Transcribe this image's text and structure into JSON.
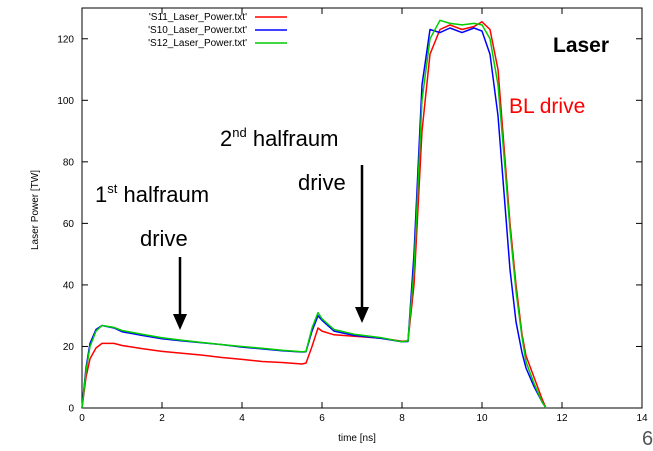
{
  "chart_data": {
    "type": "line",
    "xlabel": "time [ns]",
    "ylabel": "Laser Power [TW]",
    "xlim": [
      0,
      14
    ],
    "ylim": [
      0,
      130
    ],
    "xticks": [
      0,
      2,
      4,
      6,
      8,
      10,
      12,
      14
    ],
    "yticks": [
      0,
      20,
      40,
      60,
      80,
      100,
      120
    ],
    "grid": false,
    "legend_position": "top-left",
    "series": [
      {
        "name": "'S11_Laser_Power.txt'",
        "color": "#ff0000",
        "points": [
          [
            0,
            0
          ],
          [
            0.1,
            10
          ],
          [
            0.2,
            16
          ],
          [
            0.35,
            19.5
          ],
          [
            0.5,
            21
          ],
          [
            0.8,
            21
          ],
          [
            1,
            20.3
          ],
          [
            1.5,
            19.3
          ],
          [
            2,
            18.4
          ],
          [
            2.5,
            17.8
          ],
          [
            3,
            17.2
          ],
          [
            3.5,
            16.4
          ],
          [
            4,
            15.8
          ],
          [
            4.5,
            15.1
          ],
          [
            5,
            14.8
          ],
          [
            5.5,
            14.3
          ],
          [
            5.6,
            14.6
          ],
          [
            5.75,
            20
          ],
          [
            5.9,
            26
          ],
          [
            6,
            25
          ],
          [
            6.3,
            23.8
          ],
          [
            6.8,
            23.3
          ],
          [
            7.5,
            22.7
          ],
          [
            8,
            21.7
          ],
          [
            8.15,
            21.8
          ],
          [
            8.3,
            40
          ],
          [
            8.5,
            90
          ],
          [
            8.7,
            115
          ],
          [
            8.95,
            123
          ],
          [
            9.2,
            124.5
          ],
          [
            9.5,
            123
          ],
          [
            9.8,
            124
          ],
          [
            10,
            125.5
          ],
          [
            10.2,
            123
          ],
          [
            10.4,
            110
          ],
          [
            10.55,
            85
          ],
          [
            10.7,
            60
          ],
          [
            10.85,
            40
          ],
          [
            11,
            24
          ],
          [
            11.1,
            17
          ],
          [
            11.3,
            10
          ],
          [
            11.5,
            3
          ],
          [
            11.6,
            0
          ]
        ]
      },
      {
        "name": "'S10_Laser_Power.txt'",
        "color": "#0000ff",
        "points": [
          [
            0,
            0
          ],
          [
            0.1,
            13
          ],
          [
            0.2,
            21
          ],
          [
            0.35,
            25.5
          ],
          [
            0.5,
            26.8
          ],
          [
            0.8,
            26
          ],
          [
            1,
            24.8
          ],
          [
            1.5,
            23.6
          ],
          [
            2,
            22.5
          ],
          [
            2.5,
            21.8
          ],
          [
            3,
            21.2
          ],
          [
            3.5,
            20.6
          ],
          [
            4,
            19.8
          ],
          [
            4.5,
            19.2
          ],
          [
            5,
            18.6
          ],
          [
            5.5,
            18.2
          ],
          [
            5.6,
            18.3
          ],
          [
            5.75,
            25
          ],
          [
            5.9,
            30
          ],
          [
            6,
            28.5
          ],
          [
            6.3,
            25
          ],
          [
            6.8,
            23.6
          ],
          [
            7.5,
            22.6
          ],
          [
            8,
            21.5
          ],
          [
            8.15,
            21.6
          ],
          [
            8.3,
            50
          ],
          [
            8.5,
            105
          ],
          [
            8.7,
            123
          ],
          [
            8.95,
            122
          ],
          [
            9.2,
            123.5
          ],
          [
            9.5,
            122
          ],
          [
            9.8,
            123.5
          ],
          [
            10,
            122.5
          ],
          [
            10.2,
            115
          ],
          [
            10.4,
            95
          ],
          [
            10.55,
            70
          ],
          [
            10.7,
            45
          ],
          [
            10.85,
            28
          ],
          [
            11,
            18
          ],
          [
            11.1,
            13
          ],
          [
            11.3,
            7
          ],
          [
            11.5,
            2
          ],
          [
            11.6,
            0
          ]
        ]
      },
      {
        "name": "'S12_Laser_Power.txt'",
        "color": "#00cc00",
        "points": [
          [
            0,
            0
          ],
          [
            0.1,
            12
          ],
          [
            0.2,
            20
          ],
          [
            0.35,
            25
          ],
          [
            0.5,
            26.8
          ],
          [
            0.8,
            26.2
          ],
          [
            1,
            25.2
          ],
          [
            1.5,
            24
          ],
          [
            2,
            22.8
          ],
          [
            2.5,
            22
          ],
          [
            3,
            21.3
          ],
          [
            3.5,
            20.6
          ],
          [
            4,
            20
          ],
          [
            4.5,
            19.4
          ],
          [
            5,
            18.8
          ],
          [
            5.5,
            18.3
          ],
          [
            5.6,
            18.4
          ],
          [
            5.75,
            26
          ],
          [
            5.9,
            31
          ],
          [
            6,
            29
          ],
          [
            6.3,
            25.5
          ],
          [
            6.8,
            24
          ],
          [
            7.5,
            22.8
          ],
          [
            8,
            21.5
          ],
          [
            8.15,
            21.8
          ],
          [
            8.3,
            45
          ],
          [
            8.5,
            100
          ],
          [
            8.7,
            120
          ],
          [
            8.95,
            126
          ],
          [
            9.2,
            125
          ],
          [
            9.5,
            124.5
          ],
          [
            9.8,
            125
          ],
          [
            10,
            124.5
          ],
          [
            10.2,
            120
          ],
          [
            10.4,
            105
          ],
          [
            10.55,
            82
          ],
          [
            10.7,
            58
          ],
          [
            10.85,
            38
          ],
          [
            11,
            23
          ],
          [
            11.1,
            15
          ],
          [
            11.3,
            8
          ],
          [
            11.5,
            2
          ],
          [
            11.6,
            0
          ]
        ]
      }
    ],
    "annotations": {
      "laser": "Laser",
      "bl_drive": "BL drive",
      "first_num": "1",
      "first_sup": "st",
      "first_rest": " halfraum",
      "first_drive": "drive",
      "second_num": "2",
      "second_sup": "nd",
      "second_rest": " halfraum",
      "second_drive": "drive"
    },
    "annotation_colors": {
      "laser": "#000000",
      "bl_drive": "#ff0000"
    }
  },
  "page_number": "6"
}
